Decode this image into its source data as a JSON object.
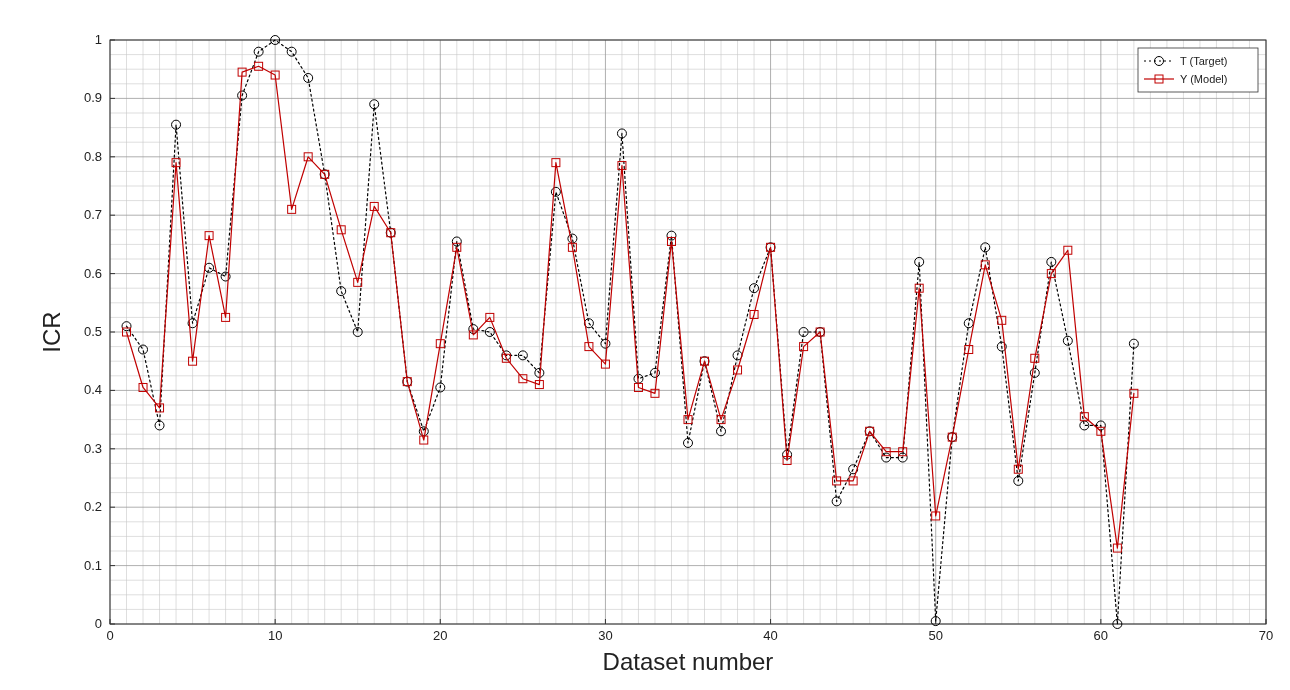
{
  "chart_data": {
    "type": "line",
    "xlabel": "Dataset number",
    "ylabel": "ICR",
    "x": [
      1,
      2,
      3,
      4,
      5,
      6,
      7,
      8,
      9,
      10,
      11,
      12,
      13,
      14,
      15,
      16,
      17,
      18,
      19,
      20,
      21,
      22,
      23,
      24,
      25,
      26,
      27,
      28,
      29,
      30,
      31,
      32,
      33,
      34,
      35,
      36,
      37,
      38,
      39,
      40,
      41,
      42,
      43,
      44,
      45,
      46,
      47,
      48,
      49,
      50,
      51,
      52,
      53,
      54,
      55,
      56,
      57,
      58,
      59,
      60,
      61,
      62
    ],
    "series": [
      {
        "name": "T (Target)",
        "color": "#000000",
        "marker": "circle",
        "line_style": "dotted",
        "values": [
          0.51,
          0.47,
          0.34,
          0.855,
          0.515,
          0.61,
          0.595,
          0.905,
          0.98,
          1.0,
          0.98,
          0.935,
          0.77,
          0.57,
          0.5,
          0.89,
          0.67,
          0.415,
          0.33,
          0.405,
          0.655,
          0.505,
          0.5,
          0.46,
          0.46,
          0.43,
          0.74,
          0.66,
          0.515,
          0.48,
          0.84,
          0.42,
          0.43,
          0.665,
          0.31,
          0.45,
          0.33,
          0.46,
          0.575,
          0.645,
          0.29,
          0.5,
          0.5,
          0.21,
          0.265,
          0.33,
          0.285,
          0.285,
          0.62,
          0.005,
          0.32,
          0.515,
          0.645,
          0.475,
          0.245,
          0.43,
          0.62,
          0.485,
          0.34,
          0.34,
          0.0,
          0.48
        ]
      },
      {
        "name": "Y (Model)",
        "color": "#c00000",
        "marker": "square",
        "line_style": "solid",
        "values": [
          0.5,
          0.405,
          0.37,
          0.79,
          0.45,
          0.665,
          0.525,
          0.945,
          0.955,
          0.94,
          0.71,
          0.8,
          0.77,
          0.675,
          0.585,
          0.715,
          0.67,
          0.415,
          0.315,
          0.48,
          0.645,
          0.495,
          0.525,
          0.455,
          0.42,
          0.41,
          0.79,
          0.645,
          0.475,
          0.445,
          0.785,
          0.405,
          0.395,
          0.655,
          0.35,
          0.45,
          0.35,
          0.435,
          0.53,
          0.645,
          0.28,
          0.475,
          0.5,
          0.245,
          0.245,
          0.33,
          0.295,
          0.295,
          0.575,
          0.185,
          0.32,
          0.47,
          0.615,
          0.52,
          0.265,
          0.455,
          0.6,
          0.64,
          0.355,
          0.33,
          0.13,
          0.395
        ]
      }
    ],
    "xlim": [
      0,
      70
    ],
    "xticks": [
      0,
      10,
      20,
      30,
      40,
      50,
      60,
      70
    ],
    "ylim": [
      0,
      1
    ],
    "yticks": [
      0,
      0.1,
      0.2,
      0.3,
      0.4,
      0.5,
      0.6,
      0.7,
      0.8,
      0.9,
      1
    ],
    "grid": true,
    "legend": "top right"
  }
}
